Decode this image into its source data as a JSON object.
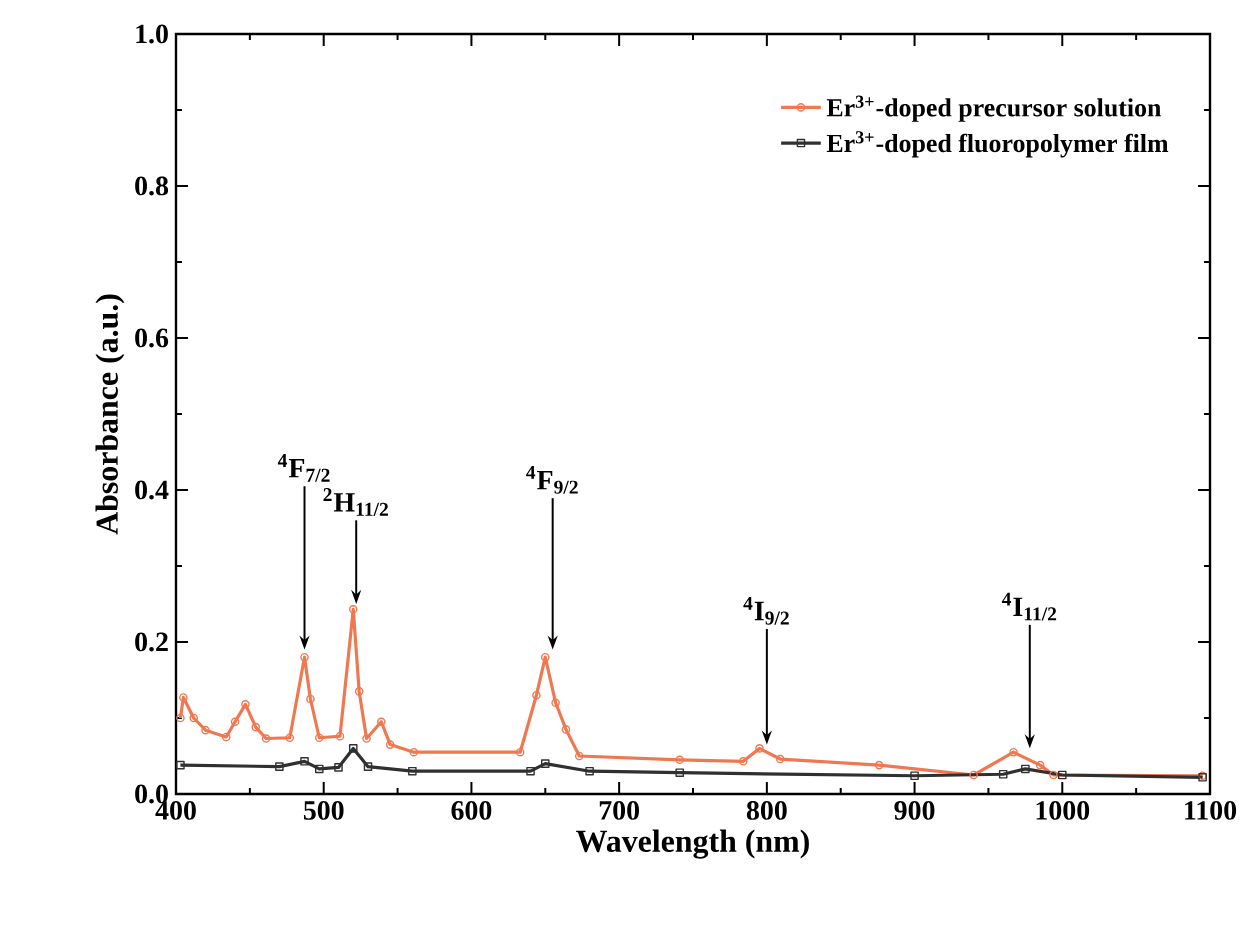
{
  "chart_data": {
    "type": "line",
    "xlabel": "Wavelength (nm)",
    "ylabel": "Absorbance (a.u.)",
    "xlim": [
      400,
      1100
    ],
    "ylim": [
      0,
      1.0
    ],
    "xticks": [
      400,
      500,
      600,
      700,
      800,
      900,
      1000,
      1100
    ],
    "yticks": [
      {
        "value": 0,
        "label": "0.0"
      },
      {
        "value": 0.2,
        "label": "0.2"
      },
      {
        "value": 0.4,
        "label": "0.4"
      },
      {
        "value": 0.6,
        "label": "0.6"
      },
      {
        "value": 0.8,
        "label": "0.8"
      },
      {
        "value": 1.0,
        "label": "1.0"
      }
    ],
    "legend": "top right",
    "line_style": "solid",
    "series": [
      {
        "name": "Er$^{3+}$-doped precursor solution",
        "color": "#f07850",
        "marker": "circle",
        "x": [
          403,
          405,
          412,
          420,
          434,
          440,
          447,
          454,
          461,
          477,
          487,
          491,
          497,
          511,
          520,
          524,
          529,
          539,
          545,
          561,
          633,
          644,
          650,
          657,
          664,
          673,
          741,
          784,
          795,
          809,
          876,
          940,
          967,
          985,
          994,
          1095
        ],
        "values": [
          0.1,
          0.127,
          0.1,
          0.084,
          0.075,
          0.095,
          0.118,
          0.088,
          0.073,
          0.074,
          0.18,
          0.125,
          0.074,
          0.076,
          0.243,
          0.135,
          0.073,
          0.095,
          0.065,
          0.055,
          0.055,
          0.13,
          0.18,
          0.12,
          0.085,
          0.05,
          0.045,
          0.043,
          0.06,
          0.046,
          0.038,
          0.025,
          0.055,
          0.038,
          0.025,
          0.024
        ]
      },
      {
        "name": "Er$^{3+}$-doped fluoropolymer film",
        "color": "#303030",
        "marker": "square",
        "x": [
          403,
          470,
          487,
          497,
          510,
          520,
          530,
          560,
          640,
          650,
          680,
          741,
          900,
          960,
          975,
          1000,
          1095
        ],
        "values": [
          0.038,
          0.036,
          0.043,
          0.033,
          0.035,
          0.06,
          0.036,
          0.03,
          0.03,
          0.04,
          0.03,
          0.028,
          0.024,
          0.026,
          0.033,
          0.025,
          0.022
        ]
      }
    ],
    "annotations": [
      {
        "text": "$^{4}$F$_{7/2}$",
        "x": 487,
        "y": 0.19
      },
      {
        "text": "$^{2}$H$_{11/2}$",
        "x": 522,
        "y": 0.25
      },
      {
        "text": "$^{4}$F$_{9/2}$",
        "x": 655,
        "y": 0.19
      },
      {
        "text": "$^{4}$I$_{9/2}$",
        "x": 800,
        "y": 0.065
      },
      {
        "text": "$^{4}$I$_{11/2}$",
        "x": 978,
        "y": 0.06
      }
    ]
  }
}
